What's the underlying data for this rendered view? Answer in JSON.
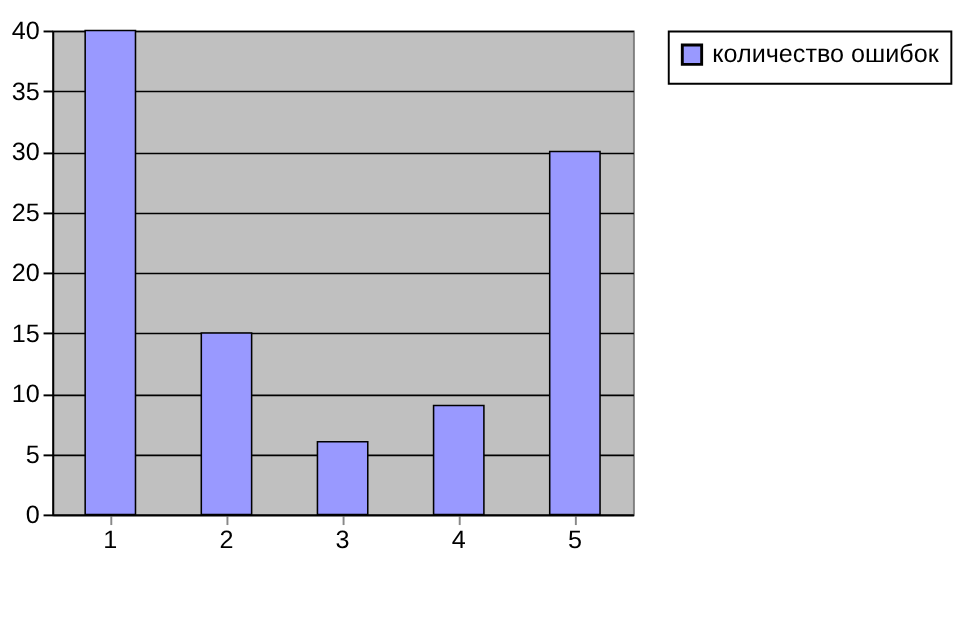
{
  "chart_data": {
    "type": "bar",
    "categories": [
      "1",
      "2",
      "3",
      "4",
      "5"
    ],
    "series": [
      {
        "name": "количество ошибок",
        "color": "#9999ff",
        "values": [
          40,
          15,
          6,
          9,
          30
        ]
      }
    ],
    "ylim": [
      0,
      40
    ],
    "yticks": [
      0,
      5,
      10,
      15,
      20,
      25,
      30,
      35,
      40
    ],
    "grid": "y",
    "legend": "right"
  }
}
